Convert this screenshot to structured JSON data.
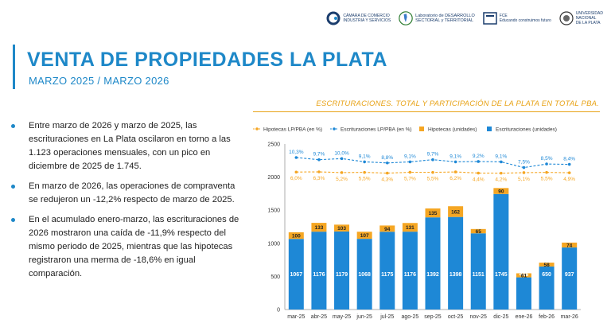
{
  "header": {
    "logos": [
      {
        "name": "camara-logo",
        "text": "CÁMARA DE COMERCIO\nINDUSTRIA Y SERVICIOS"
      },
      {
        "name": "laboratorio-logo",
        "text": "Laboratorio de DESARROLLO\nSECTORIAL y TERRITORIAL"
      },
      {
        "name": "fce-logo",
        "text": "FCE\nEducando construimos futuro"
      },
      {
        "name": "unlp-logo",
        "text": "UNIVERSIDAD\nNACIONAL\nDE LA PLATA"
      }
    ]
  },
  "title": "VENTA DE PROPIEDADES LA PLATA",
  "subtitle": "MARZO 2025 / MARZO 2026",
  "bullets": [
    "Entre marzo de 2026 y marzo de 2025, las escrituraciones en La Plata oscilaron en torno a las 1.123 operaciones mensuales, con un pico en diciembre de 2025 de 1.745.",
    "En marzo de 2026, las operaciones de compraventa se redujeron un -12,2% respecto de marzo de 2025.",
    "En el acumulado enero-marzo, las escrituraciones de 2026 mostraron una caída de -11,9% respecto del mismo periodo de 2025, mientras que las hipotecas registraron una merma de -18,6% en igual comparación."
  ],
  "chart_data": {
    "type": "bar",
    "title": "ESCRITURACIONES. TOTAL Y PARTICIPACIÓN DE LA PLATA EN TOTAL PBA.",
    "categories": [
      "mar-25",
      "abr-25",
      "may-25",
      "jun-25",
      "jul-25",
      "ago-25",
      "sep-25",
      "oct-25",
      "nov-25",
      "dic-25",
      "ene-26",
      "feb-26",
      "mar-26"
    ],
    "stacked": true,
    "series": [
      {
        "name": "Escrituraciones (unidades)",
        "type": "bar",
        "color": "#1e88d6",
        "values": [
          1067,
          1176,
          1179,
          1068,
          1175,
          1176,
          1392,
          1398,
          1151,
          1745,
          486,
          650,
          937
        ]
      },
      {
        "name": "Hipotecas (unidades)",
        "type": "bar",
        "color": "#f5a623",
        "values": [
          100,
          133,
          103,
          107,
          94,
          131,
          135,
          162,
          65,
          90,
          61,
          58,
          74
        ]
      },
      {
        "name": "Escrituraciones LP/PBA (en %)",
        "type": "line",
        "color": "#1e88d6",
        "values": [
          10.3,
          9.7,
          10.0,
          9.1,
          8.8,
          9.1,
          9.7,
          9.1,
          9.2,
          9.1,
          7.5,
          8.5,
          8.4
        ],
        "labels": [
          "10,3%",
          "9,7%",
          "10,0%",
          "9,1%",
          "8,8%",
          "9,1%",
          "9,7%",
          "9,1%",
          "9,2%",
          "9,1%",
          "7,5%",
          "8,5%",
          "8,4%"
        ]
      },
      {
        "name": "Hipotecas LP/PBA (en %)",
        "type": "line",
        "color": "#f5a623",
        "values": [
          6.0,
          6.3,
          5.2,
          5.5,
          4.3,
          5.7,
          5.5,
          6.2,
          4.4,
          4.2,
          5.1,
          5.5,
          4.9
        ],
        "labels": [
          "6,0%",
          "6,3%",
          "5,2%",
          "5,5%",
          "4,3%",
          "5,7%",
          "5,5%",
          "6,2%",
          "4,4%",
          "4,2%",
          "5,1%",
          "5,5%",
          "4,9%"
        ]
      }
    ],
    "legend_order": [
      "Hipotecas LP/PBA (en %)",
      "Escrituraciones LP/PBA (en %)",
      "Hipotecas (unidades)",
      "Escrituraciones (unidades)"
    ],
    "legend_position": "top",
    "ylim": [
      0,
      2500
    ],
    "yticks": [
      0,
      500,
      1000,
      1500,
      2000,
      2500
    ],
    "grid": false
  }
}
